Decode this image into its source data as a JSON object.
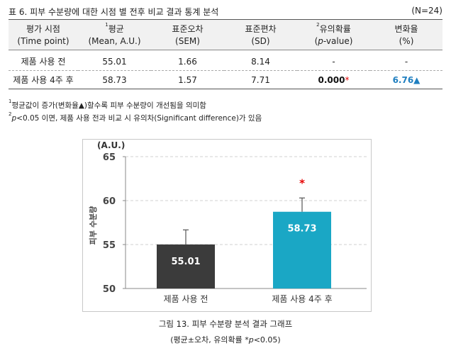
{
  "table": {
    "caption": "표 6. 피부 수분량에 대한 시점 별 전후 비교 결과 통계 분석",
    "n_label": "(N=24)",
    "headers": [
      {
        "line1": "평가 시점",
        "sup": "",
        "line2": "(Time point)"
      },
      {
        "line1": "평균",
        "sup": "1",
        "line2": "(Mean, A.U.)"
      },
      {
        "line1": "표준오차",
        "sup": "",
        "line2": "(SEM)"
      },
      {
        "line1": "표준편차",
        "sup": "",
        "line2": "(SD)"
      },
      {
        "line1": "유의확률",
        "sup": "2",
        "line2_prefix": "(",
        "line2_italic": "p",
        "line2_suffix": "-value)"
      },
      {
        "line1": "변화율",
        "sup": "",
        "line2": "(%)"
      }
    ],
    "rows": [
      {
        "time": "제품 사용 전",
        "mean": "55.01",
        "sem": "1.66",
        "sd": "8.14",
        "pvalue": "-",
        "change": "-"
      },
      {
        "time": "제품 사용 4주 후",
        "mean": "58.73",
        "sem": "1.57",
        "sd": "7.71",
        "pvalue": "0.000",
        "pvalue_mark": "*",
        "change": "6.76▲"
      }
    ]
  },
  "notes": {
    "note1_sup": "1",
    "note1": "평균값이 증가(변화율▲)할수록 피부 수분량이 개선됨을 의미함",
    "note2_sup": "2",
    "note2_italic": "p",
    "note2": "<0.05 이면, 제품 사용 전과 비교 시 유의차(Significant difference)가 있음"
  },
  "chart_data": {
    "type": "bar",
    "unit_label": "(A.U.)",
    "ylabel": "피부 수분량",
    "ylim": [
      50,
      65
    ],
    "yticks": [
      "50",
      "55",
      "60",
      "65"
    ],
    "categories": [
      "제품 사용 전",
      "제품 사용 4주 후"
    ],
    "values": [
      55.01,
      58.73
    ],
    "value_labels": [
      "55.01",
      "58.73"
    ],
    "errors": [
      1.66,
      1.57
    ],
    "significance": [
      "",
      "*"
    ],
    "colors": [
      "#3b3b3b",
      "#1aa7c5"
    ],
    "significance_color": "#e60000",
    "grid": true
  },
  "figure": {
    "caption": "그림 13. 피부 수분량 분석 결과 그래프",
    "subcaption_prefix": "(평균±오차, 유의확률 *",
    "subcaption_italic": "p",
    "subcaption_suffix": "<0.05)"
  }
}
